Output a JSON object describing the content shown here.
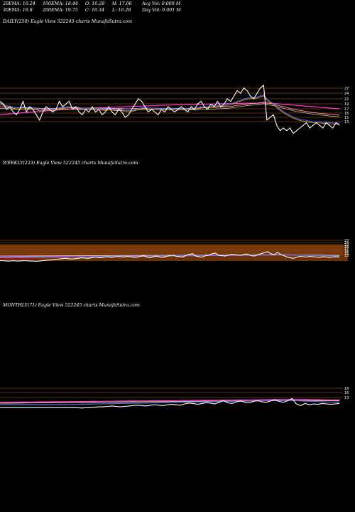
{
  "stats": {
    "row1": [
      "20EMA: 16.24",
      "100EMA: 18.44",
      "O: 16.28",
      "H: 17.06",
      "Avg Vol: 0.009 M"
    ],
    "row2": [
      "30EMA: 16.8",
      "200EMA: 19.75",
      "C: 16.34",
      "L: 16.28",
      "Day Vol: 0.001 M"
    ]
  },
  "panels": {
    "daily": {
      "title": "DAILY(250) Eagle  View  522245 charts MunafaSutra.com"
    },
    "weekly": {
      "title": "WEEKLY(223) Eagle  View  522245 charts MunafaSutra.com"
    },
    "monthly": {
      "title": "MONTHLY(71) Eagle  View  522245 charts MunafaSutra.com"
    }
  },
  "colors": {
    "background": "#000000",
    "price": "#ffffff",
    "ema_blue": "#3c6cff",
    "ema_orange": "#ffa500",
    "ema_magenta": "#ff3ccb",
    "ema_pink": "#ff9ab5",
    "ema_yellow": "#e0d0a0",
    "support_lines": "#c0601a",
    "volume_band": "#7a3a08"
  },
  "chart_data": [
    {
      "type": "line",
      "name": "daily",
      "title": "DAILY(250) Eagle  View  522245 charts MunafaSutra.com",
      "ylim": [
        12,
        28
      ],
      "y_tick_labels": [
        "27",
        "24",
        "22",
        "19",
        "17",
        "16",
        "15",
        "13"
      ],
      "y_tick_values": [
        27,
        24,
        22,
        19,
        17,
        16,
        15,
        13
      ],
      "price": [
        22,
        21,
        19,
        20,
        18,
        17,
        19,
        22,
        18,
        20,
        19,
        17,
        15,
        18,
        20,
        19,
        18,
        19,
        22,
        20,
        21,
        22,
        19,
        20,
        18,
        17,
        19,
        18,
        20,
        18,
        19,
        17,
        18,
        20,
        18,
        17,
        19,
        18,
        16,
        17,
        19,
        21,
        23,
        22,
        20,
        18,
        19,
        18,
        17,
        19,
        18,
        20,
        19,
        18,
        19,
        20,
        19,
        18,
        20,
        19,
        21,
        22,
        20,
        19,
        21,
        20,
        22,
        20,
        21,
        23,
        22,
        24,
        26,
        25,
        27,
        26,
        24,
        23,
        25,
        27,
        28,
        15,
        16,
        17,
        13,
        11,
        12,
        11,
        12,
        10,
        11,
        12,
        13,
        14,
        12,
        13,
        14,
        13,
        12,
        14,
        13,
        12,
        14,
        13
      ],
      "ema_fast": [
        21,
        20.5,
        20,
        19.8,
        19.4,
        19.2,
        19.3,
        19.6,
        19.3,
        19.4,
        19.2,
        18.9,
        18.4,
        18.5,
        18.7,
        18.8,
        18.7,
        18.8,
        19.2,
        19.3,
        19.5,
        19.6,
        19.5,
        19.5,
        19.3,
        19,
        19,
        18.9,
        19,
        18.9,
        18.9,
        18.7,
        18.6,
        18.8,
        18.7,
        18.5,
        18.6,
        18.5,
        18.2,
        18.1,
        18.2,
        18.5,
        18.9,
        19.2,
        19.3,
        19.1,
        19.1,
        19,
        18.8,
        18.9,
        18.8,
        18.9,
        18.9,
        18.8,
        18.8,
        18.9,
        18.9,
        18.8,
        19,
        19,
        19.2,
        19.5,
        19.6,
        19.6,
        19.8,
        19.8,
        20.1,
        20.1,
        20.2,
        20.5,
        20.7,
        21.1,
        21.6,
        22,
        22.5,
        22.8,
        23,
        23,
        23.2,
        23.6,
        24.1,
        22.5,
        21.5,
        20.8,
        19.7,
        18.6,
        17.8,
        17,
        16.4,
        15.7,
        15.2,
        14.8,
        14.6,
        14.5,
        14.2,
        14,
        14,
        13.9,
        13.7,
        13.7,
        13.6,
        13.5,
        13.5,
        13.5
      ],
      "ema_slow": [
        20,
        19.9,
        19.8,
        19.8,
        19.7,
        19.6,
        19.6,
        19.7,
        19.6,
        19.6,
        19.6,
        19.5,
        19.4,
        19.4,
        19.4,
        19.4,
        19.4,
        19.4,
        19.5,
        19.5,
        19.5,
        19.6,
        19.6,
        19.6,
        19.5,
        19.5,
        19.5,
        19.5,
        19.5,
        19.5,
        19.4,
        19.4,
        19.4,
        19.4,
        19.4,
        19.3,
        19.3,
        19.3,
        19.2,
        19.2,
        19.2,
        19.3,
        19.4,
        19.5,
        19.5,
        19.5,
        19.5,
        19.5,
        19.4,
        19.4,
        19.4,
        19.4,
        19.4,
        19.4,
        19.4,
        19.4,
        19.4,
        19.4,
        19.4,
        19.4,
        19.5,
        19.6,
        19.6,
        19.6,
        19.7,
        19.7,
        19.8,
        19.8,
        19.9,
        20,
        20.1,
        20.3,
        20.5,
        20.6,
        20.8,
        21,
        21.1,
        21.2,
        21.3,
        21.5,
        21.7,
        21.4,
        21.2,
        21,
        20.6,
        20.3,
        20,
        19.7,
        19.4,
        19.1,
        18.8,
        18.6,
        18.4,
        18.2,
        18,
        17.8,
        17.7,
        17.5,
        17.4,
        17.3,
        17.1,
        17,
        16.9,
        16.8
      ],
      "ema_long": [
        17,
        17.1,
        17.2,
        17.3,
        17.4,
        17.5,
        17.6,
        17.7,
        17.8,
        17.9,
        18,
        18.1,
        18.2,
        18.3,
        18.4,
        18.5,
        18.6,
        18.7,
        18.8,
        18.9,
        19,
        19.1,
        19.2,
        19.2,
        19.3,
        19.3,
        19.4,
        19.4,
        19.5,
        19.5,
        19.6,
        19.6,
        19.7,
        19.7,
        19.8,
        19.8,
        19.9,
        19.9,
        20,
        20,
        20.1,
        20.1,
        20.2,
        20.2,
        20.3,
        20.3,
        20.4,
        20.4,
        20.5,
        20.5,
        20.6,
        20.6,
        20.6,
        20.7,
        20.7,
        20.7,
        20.8,
        20.8,
        20.8,
        20.9,
        20.9,
        20.9,
        21,
        21,
        21,
        21,
        21.1,
        21.1,
        21.1,
        21.1,
        21.2,
        21.2,
        21.2,
        21.2,
        21.3,
        21.3,
        21.3,
        21.3,
        21.3,
        21.4,
        21.4,
        21.3,
        21.3,
        21.2,
        21.1,
        21,
        20.9,
        20.8,
        20.7,
        20.6,
        20.5,
        20.4,
        20.3,
        20.2,
        20.1,
        20,
        19.9,
        19.8,
        19.7,
        19.6,
        19.5,
        19.4,
        19.3,
        19.2
      ]
    },
    {
      "type": "line",
      "name": "weekly",
      "title": "WEEKLY(223) Eagle  View  522245 charts MunafaSutra.com",
      "ylim": [
        0,
        60
      ],
      "y_tick_labels": [
        "27",
        "24",
        "22",
        "19",
        "17",
        "16",
        "15",
        "13"
      ],
      "y_tick_values": [
        27,
        24,
        22,
        19,
        17,
        16,
        15,
        13
      ],
      "price": [
        3,
        3,
        2,
        2,
        3,
        2,
        2,
        3,
        3,
        2,
        2,
        1,
        2,
        3,
        4,
        5,
        6,
        7,
        8,
        9,
        10,
        9,
        8,
        9,
        10,
        12,
        11,
        10,
        12,
        14,
        13,
        12,
        14,
        15,
        13,
        14,
        16,
        15,
        14,
        16,
        15,
        13,
        14,
        16,
        18,
        14,
        12,
        15,
        17,
        14,
        13,
        16,
        18,
        20,
        16,
        15,
        14,
        19,
        22,
        24,
        17,
        15,
        14,
        18,
        20,
        24,
        26,
        19,
        18,
        17,
        20,
        22,
        21,
        20,
        19,
        23,
        22,
        18,
        17,
        21,
        24,
        27,
        30,
        24,
        21,
        28,
        22,
        18,
        14,
        12,
        10,
        14,
        16,
        15,
        14,
        16,
        15,
        14,
        13,
        15,
        14,
        13,
        14,
        15,
        14
      ],
      "ema_fast": [
        15,
        15,
        15,
        14.8,
        14.8,
        14.7,
        14.5,
        14.6,
        14.6,
        14.5,
        14.4,
        14.3,
        14.3,
        14.4,
        14.5,
        14.6,
        14.6,
        14.7,
        14.8,
        14.9,
        15,
        15,
        15,
        15,
        15.1,
        15.2,
        15.3,
        15.3,
        15.4,
        15.5,
        15.6,
        15.7,
        15.8,
        15.9,
        16,
        16,
        16.1,
        16.2,
        16.3,
        16.4,
        16.4,
        16.5,
        16.6,
        16.7,
        16.8,
        16.8,
        16.8,
        16.9,
        17,
        17,
        17,
        17.1,
        17.2,
        17.4,
        17.5,
        17.5,
        17.5,
        17.7,
        18,
        18.3,
        18.4,
        18.3,
        18.2,
        18.3,
        18.5,
        18.8,
        19.2,
        19.3,
        19.3,
        19.3,
        19.4,
        19.6,
        19.7,
        19.7,
        19.7,
        19.9,
        20,
        19.9,
        19.8,
        19.9,
        20.1,
        20.4,
        20.8,
        21,
        21,
        21.3,
        21.3,
        21,
        20.6,
        20.1,
        19.6,
        19.3,
        19.1,
        18.9,
        18.6,
        18.5,
        18.3,
        18.1,
        17.8,
        17.6,
        17.4,
        17.1,
        16.9,
        16.8,
        16.6
      ],
      "ema_slow": [
        17,
        17,
        17.1,
        17.1,
        17.2,
        17.2,
        17.3,
        17.3,
        17.4,
        17.4,
        17.5,
        17.5,
        17.6,
        17.6,
        17.7,
        17.7,
        17.8,
        17.8,
        17.9,
        17.9,
        18,
        18,
        18.1,
        18.1,
        18.2,
        18.2,
        18.3,
        18.3,
        18.4,
        18.4,
        18.5,
        18.5,
        18.6,
        18.6,
        18.7,
        18.7,
        18.8,
        18.8,
        18.9,
        18.9,
        19,
        19,
        19.1,
        19.1,
        19.2,
        19.2,
        19.3,
        19.3,
        19.4,
        19.4,
        19.5,
        19.5,
        19.6,
        19.6,
        19.7,
        19.7,
        19.8,
        19.8,
        19.9,
        19.9,
        20,
        20,
        20.1,
        20.1,
        20.2,
        20.2,
        20.3,
        20.3,
        20.4,
        20.4,
        20.5,
        20.5,
        20.6,
        20.6,
        20.7,
        20.7,
        20.8,
        20.8,
        20.9,
        20.9,
        21,
        21,
        21.1,
        21.1,
        21.2,
        21.2,
        21.2,
        21.1,
        21,
        20.9,
        20.8,
        20.7,
        20.6,
        20.5,
        20.4,
        20.3,
        20.2,
        20.1,
        20,
        19.9,
        19.8,
        19.7,
        19.6,
        19.5,
        19.4
      ],
      "ema_long": [
        12,
        12.1,
        12.2,
        12.3,
        12.4,
        12.5,
        12.6,
        12.7,
        12.8,
        12.9,
        13,
        13.1,
        13.2,
        13.3,
        13.4,
        13.5,
        13.6,
        13.7,
        13.8,
        13.9,
        14,
        14.1,
        14.2,
        14.3,
        14.4,
        14.5,
        14.6,
        14.7,
        14.8,
        14.9,
        15,
        15.1,
        15.2,
        15.3,
        15.4,
        15.5,
        15.6,
        15.7,
        15.8,
        15.9,
        16,
        16.1,
        16.2,
        16.3,
        16.4,
        16.5,
        16.6,
        16.7,
        16.8,
        16.9,
        17,
        17.1,
        17.2,
        17.3,
        17.4,
        17.5,
        17.6,
        17.7,
        17.8,
        17.9,
        18,
        18.1,
        18.2,
        18.3,
        18.4,
        18.5,
        18.6,
        18.7,
        18.8,
        18.9,
        19,
        19.1,
        19.2,
        19.3,
        19.4,
        19.5,
        19.6,
        19.7,
        19.8,
        19.9,
        20,
        20.1,
        20.2,
        20.3,
        20.4,
        20.5,
        20.5,
        20.4,
        20.3,
        20.2,
        20.1,
        20,
        19.9,
        19.8,
        19.7,
        19.6,
        19.5,
        19.4,
        19.3,
        19.2,
        19.1,
        19,
        18.9,
        18.8,
        18.7
      ]
    },
    {
      "type": "line",
      "name": "monthly",
      "title": "MONTHLY(71) Eagle  View  522245 charts MunafaSutra.com",
      "ylim": [
        0,
        60
      ],
      "y_tick_labels": [
        "18",
        "16",
        "13"
      ],
      "y_tick_values": [
        18,
        16,
        13
      ],
      "price": [
        3,
        3,
        3,
        3,
        3,
        3,
        3,
        3,
        3,
        3,
        3,
        3,
        3,
        3,
        3,
        3,
        3,
        3,
        3,
        2,
        3,
        3,
        4,
        5,
        5,
        6,
        7,
        6,
        5,
        6,
        7,
        8,
        9,
        8,
        7,
        9,
        10,
        9,
        8,
        10,
        11,
        10,
        9,
        12,
        14,
        13,
        11,
        13,
        15,
        14,
        12,
        16,
        20,
        15,
        13,
        17,
        19,
        16,
        15,
        18,
        20,
        17,
        16,
        19,
        22,
        18,
        16,
        20,
        25,
        12,
        8,
        13,
        10,
        12,
        11,
        13,
        12,
        11,
        12,
        13
      ],
      "ema_fast": [
        10,
        10,
        10,
        10,
        10,
        10,
        10,
        10,
        10,
        10,
        10,
        10,
        10,
        10,
        10,
        10.2,
        10.4,
        10.6,
        10.8,
        11,
        11.2,
        11.4,
        11.6,
        11.8,
        12,
        12.2,
        12.4,
        12.6,
        12.8,
        13,
        13.2,
        13.4,
        13.6,
        13.8,
        14,
        14.2,
        14.4,
        14.6,
        14.8,
        15,
        15.2,
        15.4,
        15.6,
        15.8,
        16,
        16.2,
        16.4,
        16.6,
        16.8,
        17,
        17.2,
        17.4,
        17.6,
        17.8,
        18,
        18.2,
        18.4,
        18.6,
        18.8,
        19,
        19.2,
        19.3,
        19.4,
        19.5,
        19.6,
        19.7,
        19.8,
        19.9,
        20,
        19.5,
        19,
        18.6,
        18.2,
        17.8,
        17.4,
        17,
        16.7,
        16.4,
        16.1,
        15.8
      ],
      "ema_slow": [
        14,
        14.1,
        14.2,
        14.3,
        14.4,
        14.5,
        14.6,
        14.7,
        14.8,
        14.9,
        15,
        15.1,
        15.2,
        15.3,
        15.4,
        15.5,
        15.6,
        15.7,
        15.8,
        15.9,
        16,
        16.1,
        16.2,
        16.3,
        16.4,
        16.5,
        16.6,
        16.7,
        16.8,
        16.9,
        17,
        17.1,
        17.2,
        17.3,
        17.4,
        17.5,
        17.6,
        17.7,
        17.8,
        17.9,
        18,
        18.1,
        18.2,
        18.3,
        18.4,
        18.5,
        18.6,
        18.7,
        18.8,
        18.9,
        19,
        19.1,
        19.2,
        19.3,
        19.4,
        19.5,
        19.6,
        19.7,
        19.8,
        19.9,
        20,
        20.1,
        20.2,
        20.3,
        20.4,
        20.5,
        20.6,
        20.7,
        20.8,
        20.7,
        20.6,
        20.5,
        20.4,
        20.3,
        20.2,
        20.1,
        20,
        19.9,
        19.8,
        19.7
      ],
      "ema_long": [
        16,
        16.1,
        16.2,
        16.3,
        16.4,
        16.5,
        16.6,
        16.7,
        16.8,
        16.9,
        17,
        17.1,
        17.2,
        17.3,
        17.4,
        17.5,
        17.6,
        17.7,
        17.8,
        17.9,
        18,
        18.1,
        18.2,
        18.3,
        18.4,
        18.5,
        18.6,
        18.7,
        18.8,
        18.9,
        19,
        19.1,
        19.2,
        19.3,
        19.4,
        19.5,
        19.6,
        19.7,
        19.8,
        19.9,
        20,
        20.1,
        20.2,
        20.3,
        20.4,
        20.5,
        20.6,
        20.7,
        20.8,
        20.9,
        21,
        21.1,
        21.2,
        21.3,
        21.4,
        21.5,
        21.6,
        21.7,
        21.8,
        21.9,
        22,
        22.1,
        22.2,
        22.3,
        22.4,
        22.5,
        22.6,
        22.7,
        22.8,
        22.7,
        22.6,
        22.5,
        22.4,
        22.3,
        22.2,
        22.1,
        22,
        21.9,
        21.8,
        21.7
      ]
    }
  ]
}
